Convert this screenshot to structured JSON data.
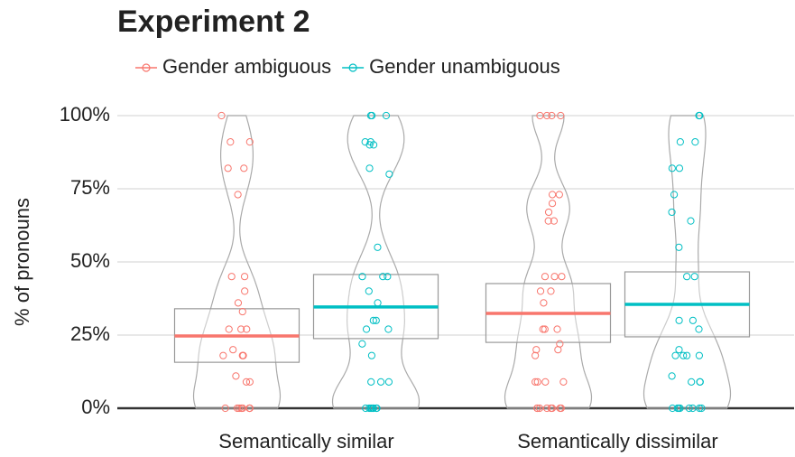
{
  "chart_data": {
    "type": "violin",
    "title": "Experiment 2",
    "y_label": "% of pronouns",
    "categories": [
      "Semantically similar",
      "Semantically dissimilar"
    ],
    "ylim": [
      0,
      100
    ],
    "yticks": [
      {
        "value": 0,
        "label": "0%"
      },
      {
        "value": 25,
        "label": "25%"
      },
      {
        "value": 50,
        "label": "50%"
      },
      {
        "value": 75,
        "label": "75%"
      },
      {
        "value": 100,
        "label": "100%"
      }
    ],
    "grid": true,
    "legend": "top",
    "series": [
      {
        "name": "Gender ambiguous",
        "color": "#f8766d",
        "mean": [
          24.7,
          32.4
        ],
        "ci_low": [
          15.7,
          22.5
        ],
        "ci_high": [
          34,
          42.6
        ],
        "points": [
          [
            100,
            91,
            91,
            82,
            82,
            73,
            45,
            45,
            40,
            36,
            33,
            27,
            27,
            27,
            20,
            18,
            18,
            18,
            18,
            11,
            9,
            9,
            0,
            0,
            0,
            0,
            0,
            0,
            0,
            0
          ],
          [
            100,
            100,
            100,
            100,
            73,
            73,
            70,
            67,
            64,
            64,
            45,
            45,
            45,
            40,
            40,
            36,
            27,
            27,
            27,
            22,
            20,
            20,
            18,
            9,
            9,
            9,
            9,
            0,
            0,
            0,
            0,
            0,
            0,
            0,
            0
          ]
        ]
      },
      {
        "name": "Gender unambiguous",
        "color": "#00bfc4",
        "mean": [
          34.6,
          35.5
        ],
        "ci_low": [
          23.8,
          24.4
        ],
        "ci_high": [
          45.7,
          46.6
        ],
        "points": [
          [
            100,
            100,
            100,
            91,
            91,
            90,
            90,
            82,
            80,
            55,
            45,
            45,
            45,
            40,
            36,
            30,
            30,
            27,
            27,
            22,
            18,
            9,
            9,
            9,
            0,
            0,
            0,
            0,
            0,
            0,
            0,
            0
          ],
          [
            100,
            100,
            100,
            91,
            91,
            82,
            82,
            73,
            67,
            64,
            55,
            45,
            45,
            30,
            30,
            27,
            20,
            18,
            18,
            18,
            18,
            11,
            9,
            9,
            9,
            0,
            0,
            0,
            0,
            0,
            0,
            0,
            0
          ]
        ]
      }
    ]
  }
}
